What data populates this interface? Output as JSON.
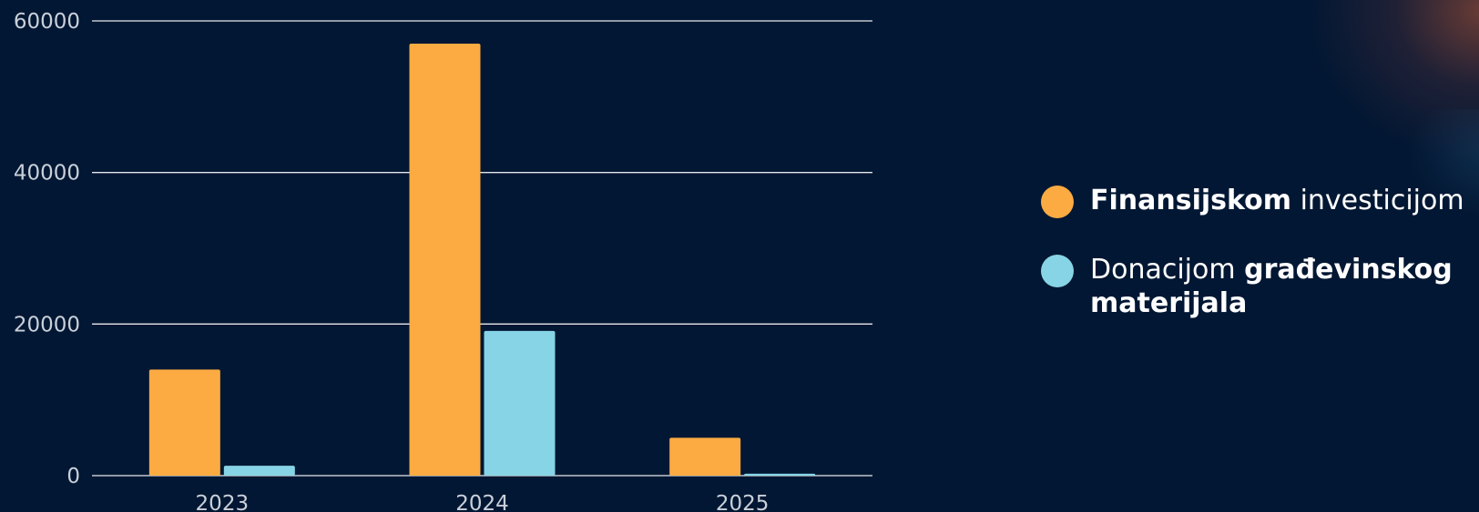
{
  "chart_data": {
    "type": "bar",
    "categories": [
      "2023",
      "2024",
      "2025"
    ],
    "series": [
      {
        "name": "Finansijskom investicijom",
        "values": [
          14000,
          57000,
          5000
        ],
        "color": "#FBAB42"
      },
      {
        "name": "Donacijom građevinskog materijala",
        "values": [
          1300,
          19100,
          250
        ],
        "color": "#87D4E6"
      }
    ],
    "ylim": [
      0,
      60000
    ],
    "yticks": [
      "0",
      "20000",
      "40000",
      "60000"
    ],
    "grid": true,
    "legend_position": "right"
  },
  "legend": [
    {
      "bold": "Finansijskom",
      "text": " investicijom",
      "color": "#FBAB42"
    },
    {
      "pre": "Donacijom ",
      "bold": "građevinskog materijala",
      "color": "#87D4E6"
    }
  ]
}
